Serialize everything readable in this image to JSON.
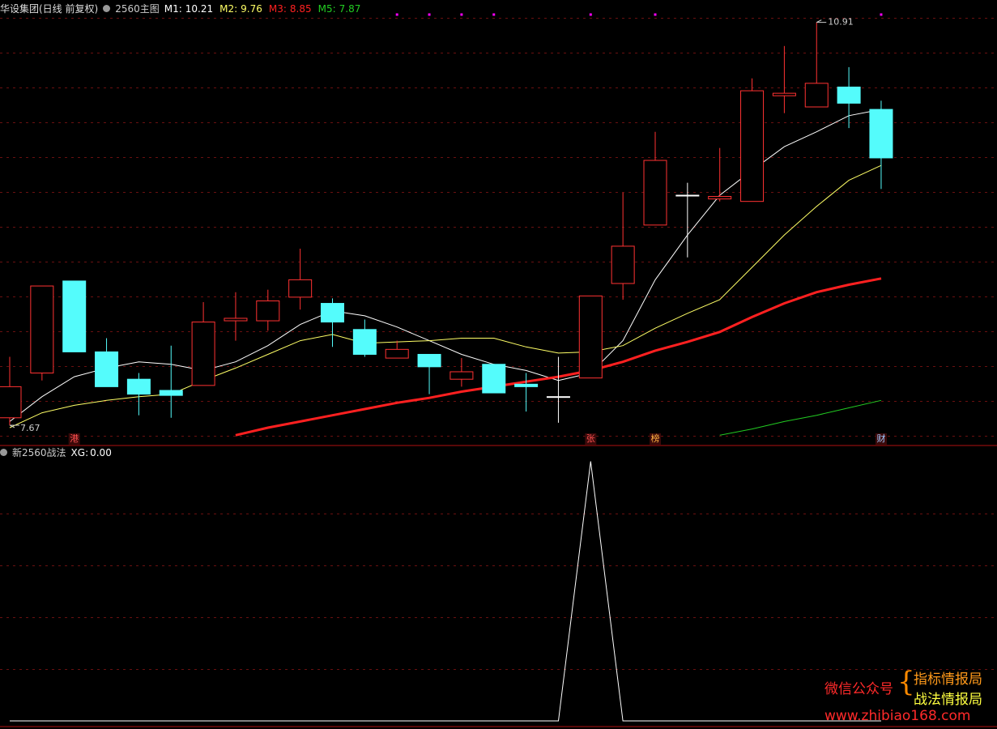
{
  "chart_data": [
    {
      "type": "candlestick",
      "title": "华设集团(日线 前复权)",
      "subtitle": "2560主图",
      "categories": [
        null,
        null,
        null,
        null,
        null,
        null,
        null,
        null,
        null,
        null,
        null,
        null,
        null,
        null,
        null,
        null,
        null,
        null,
        null,
        null,
        null,
        null,
        null,
        null,
        null,
        null,
        null,
        null
      ],
      "open": [
        7.73,
        8.09,
        8.83,
        8.26,
        8.04,
        7.95,
        7.99,
        8.51,
        8.51,
        8.7,
        8.65,
        8.44,
        8.21,
        8.24,
        8.04,
        8.16,
        8.0,
        7.9,
        8.05,
        8.81,
        9.28,
        9.52,
        9.49,
        9.47,
        10.32,
        10.23,
        10.39,
        10.21
      ],
      "high": [
        8.22,
        8.79,
        8.83,
        8.37,
        8.09,
        8.31,
        8.66,
        8.74,
        8.76,
        9.09,
        8.69,
        8.52,
        8.35,
        8.24,
        8.21,
        8.16,
        8.09,
        8.22,
        8.71,
        9.54,
        10.03,
        9.62,
        9.9,
        10.46,
        10.72,
        10.91,
        10.55,
        10.28
      ],
      "low": [
        7.67,
        8.03,
        8.26,
        7.98,
        7.75,
        7.73,
        7.99,
        8.35,
        8.43,
        8.6,
        8.3,
        8.22,
        8.21,
        7.92,
        7.98,
        7.93,
        7.78,
        7.69,
        8.05,
        8.68,
        9.28,
        9.02,
        9.47,
        9.47,
        10.18,
        10.23,
        10.06,
        9.57
      ],
      "close": [
        7.98,
        8.79,
        8.26,
        7.98,
        7.92,
        7.91,
        8.5,
        8.53,
        8.67,
        8.84,
        8.5,
        8.24,
        8.28,
        8.14,
        8.1,
        7.93,
        7.98,
        7.9,
        8.71,
        9.11,
        9.8,
        9.52,
        9.51,
        10.36,
        10.34,
        10.42,
        10.26,
        9.82
      ],
      "up_color": "#ff3232",
      "down_color": "#54fcfc",
      "flat_color": "#ffffff",
      "ylim": [
        7.52,
        11.09
      ],
      "series": [
        {
          "name": "M1:",
          "color": "#ffffff",
          "width": 1,
          "values": [
            7.7,
            7.9,
            8.06,
            8.13,
            8.18,
            8.16,
            8.11,
            8.18,
            8.31,
            8.48,
            8.59,
            8.55,
            8.46,
            8.35,
            8.24,
            8.16,
            8.11,
            8.03,
            8.09,
            8.35,
            8.84,
            9.2,
            9.52,
            9.72,
            9.91,
            10.03,
            10.16,
            10.21
          ]
        },
        {
          "name": "M2:",
          "color": "#ffff66",
          "width": 1,
          "values": [
            7.65,
            7.77,
            7.83,
            7.87,
            7.9,
            7.92,
            8.03,
            8.13,
            8.24,
            8.35,
            8.4,
            8.33,
            8.34,
            8.35,
            8.37,
            8.37,
            8.3,
            8.25,
            8.26,
            8.31,
            8.45,
            8.57,
            8.68,
            8.94,
            9.2,
            9.43,
            9.64,
            9.76
          ]
        },
        {
          "name": "M3:",
          "color": "#ff2020",
          "width": 3,
          "values": [
            null,
            null,
            null,
            null,
            null,
            null,
            null,
            7.59,
            7.65,
            7.7,
            7.75,
            7.8,
            7.85,
            7.89,
            7.94,
            7.98,
            8.02,
            8.06,
            8.11,
            8.18,
            8.27,
            8.34,
            8.42,
            8.54,
            8.65,
            8.74,
            8.8,
            8.85
          ]
        },
        {
          "name": "M5:",
          "color": "#22cc22",
          "width": 1,
          "values": [
            null,
            null,
            null,
            null,
            null,
            null,
            null,
            null,
            null,
            null,
            null,
            null,
            null,
            null,
            null,
            null,
            null,
            null,
            null,
            null,
            null,
            null,
            7.59,
            7.64,
            7.7,
            7.75,
            7.81,
            7.87
          ]
        }
      ],
      "signal_markers": [
        12,
        13,
        14,
        15,
        18,
        20,
        27
      ],
      "annotations": [
        {
          "index": 2,
          "text": "港",
          "color": "#ff5050"
        },
        {
          "index": 18,
          "text": "张",
          "color": "#ff5050"
        },
        {
          "index": 20,
          "text": "榜",
          "color": "#ffb040"
        },
        {
          "index": 27,
          "text": "财",
          "color": "#a0c8ff"
        }
      ]
    },
    {
      "type": "line",
      "title": "新2560战法",
      "ylim": [
        0,
        1.03
      ],
      "series": [
        {
          "name": "XG:",
          "color": "#ffffff",
          "current_label": "0.00",
          "values": [
            0,
            0,
            0,
            0,
            0,
            0,
            0,
            0,
            0,
            0,
            0,
            0,
            0,
            0,
            0,
            0,
            0,
            0,
            1,
            0,
            0,
            0,
            0,
            0,
            0,
            0,
            0,
            0
          ]
        }
      ]
    }
  ],
  "watermark": {
    "label": "微信公众号",
    "line1": "指标情报局",
    "line2": "战法情报局",
    "url": "www.zhibiao168.com"
  }
}
